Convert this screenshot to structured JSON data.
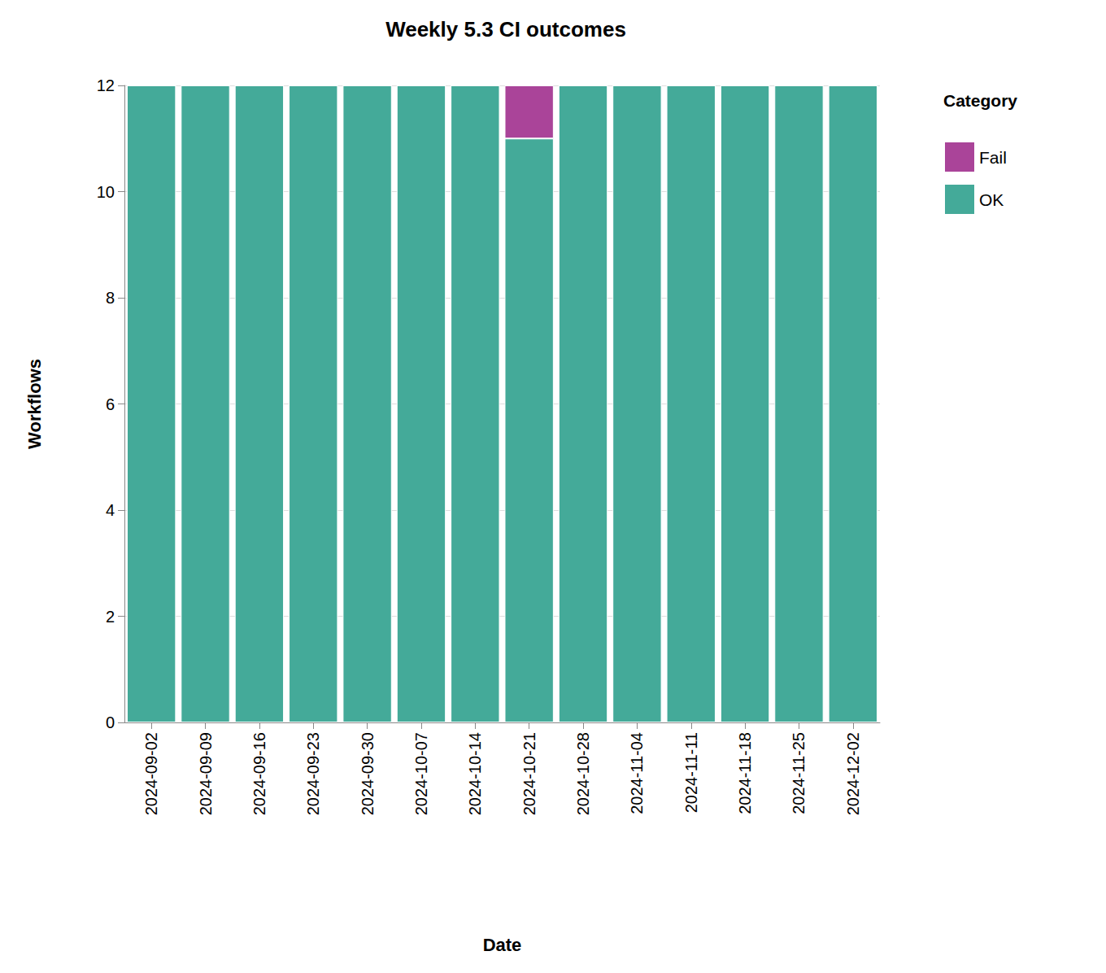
{
  "chart_data": {
    "type": "bar",
    "title": "Weekly 5.3 CI outcomes",
    "x_label": "Date",
    "y_label": "Workflows",
    "categories": [
      "2024-09-02",
      "2024-09-09",
      "2024-09-16",
      "2024-09-23",
      "2024-09-30",
      "2024-10-07",
      "2024-10-14",
      "2024-10-21",
      "2024-10-28",
      "2024-11-04",
      "2024-11-11",
      "2024-11-18",
      "2024-11-25",
      "2024-12-02"
    ],
    "series": [
      {
        "name": "Fail",
        "color": "#aa4499",
        "values": [
          0,
          0,
          0,
          0,
          0,
          0,
          0,
          1,
          0,
          0,
          0,
          0,
          0,
          0
        ]
      },
      {
        "name": "OK",
        "color": "#44aa99",
        "values": [
          12,
          12,
          12,
          12,
          12,
          12,
          12,
          11,
          12,
          12,
          12,
          12,
          12,
          12
        ]
      }
    ],
    "stacked": true,
    "ylim": [
      0,
      12
    ],
    "yticks": [
      0,
      2,
      4,
      6,
      8,
      10,
      12
    ],
    "grid": true,
    "legend": "right",
    "legend_title": "Category"
  }
}
